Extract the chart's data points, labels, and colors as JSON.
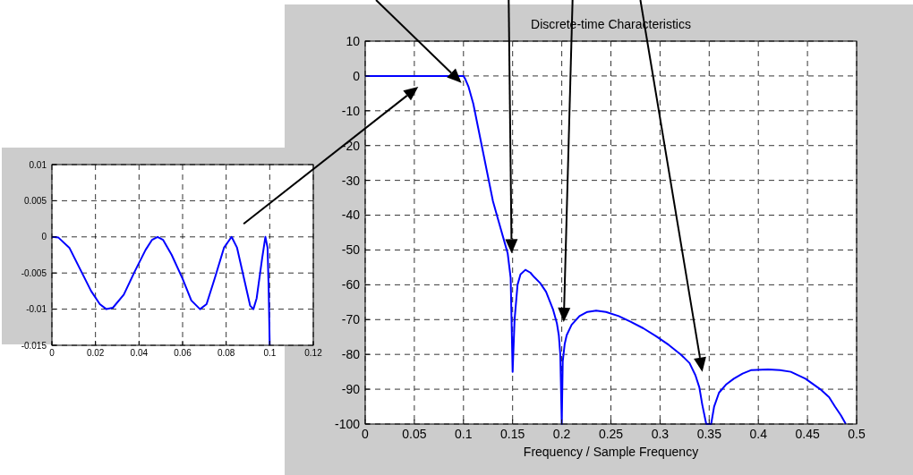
{
  "chart_data": [
    {
      "type": "line",
      "title": "Discrete-time Characteristics",
      "xlabel": "Frequency / Sample Frequency",
      "x": [
        0,
        0.05,
        0.1,
        0.102,
        0.105,
        0.11,
        0.115,
        0.12,
        0.125,
        0.13,
        0.135,
        0.14,
        0.145,
        0.148,
        0.15,
        0.152,
        0.155,
        0.158,
        0.163,
        0.168,
        0.172,
        0.178,
        0.184,
        0.191,
        0.195,
        0.197,
        0.1985,
        0.2,
        0.201,
        0.203,
        0.205,
        0.21,
        0.218,
        0.226,
        0.235,
        0.245,
        0.258,
        0.27,
        0.283,
        0.296,
        0.309,
        0.321,
        0.33,
        0.336,
        0.34,
        0.343,
        0.347,
        0.352,
        0.355,
        0.36,
        0.367,
        0.375,
        0.384,
        0.393,
        0.41,
        0.422,
        0.433,
        0.448,
        0.463,
        0.472,
        0.478,
        0.484,
        0.489
      ],
      "series": [
        {
          "color": "#0000ff",
          "values": [
            0,
            0,
            0,
            -1,
            -3,
            -8,
            -15,
            -22,
            -29,
            -36,
            -41,
            -46,
            -51,
            -58,
            -85,
            -70,
            -60,
            -57,
            -55.7,
            -56.5,
            -57.8,
            -59.5,
            -62,
            -67,
            -71,
            -74.5,
            -80,
            -100,
            -82,
            -77,
            -74.5,
            -71.5,
            -69,
            -67.8,
            -67.4,
            -67.8,
            -69,
            -70.6,
            -72.5,
            -74.8,
            -77.3,
            -80,
            -82.5,
            -86,
            -89.5,
            -94.5,
            -100,
            -100,
            -95,
            -91,
            -88.7,
            -87,
            -85.5,
            -84.5,
            -84.3,
            -84.5,
            -85,
            -87,
            -90,
            -92.3,
            -95,
            -97.5,
            -100
          ]
        }
      ],
      "xlim": [
        0,
        0.5
      ],
      "ylim": [
        -100,
        10
      ],
      "xticks": [
        0,
        0.05,
        0.1,
        0.15,
        0.2,
        0.25,
        0.3,
        0.35,
        0.4,
        0.45,
        0.5
      ],
      "yticks": [
        -100,
        -90,
        -80,
        -70,
        -60,
        -50,
        -40,
        -30,
        -20,
        -10,
        0,
        10
      ],
      "grid": true
    },
    {
      "type": "line",
      "x": [
        0,
        0.003,
        0.008,
        0.013,
        0.018,
        0.022,
        0.025,
        0.028,
        0.033,
        0.038,
        0.043,
        0.046,
        0.0485,
        0.051,
        0.055,
        0.06,
        0.064,
        0.068,
        0.071,
        0.075,
        0.079,
        0.0825,
        0.085,
        0.088,
        0.091,
        0.0925,
        0.094,
        0.0965,
        0.098,
        0.099,
        0.0995,
        0.1
      ],
      "series": [
        {
          "color": "#0000ff",
          "values": [
            0,
            -0.0001,
            -0.0015,
            -0.0045,
            -0.0075,
            -0.0093,
            -0.01,
            -0.0098,
            -0.008,
            -0.0048,
            -0.0018,
            -0.0004,
            0,
            -0.0004,
            -0.0025,
            -0.0058,
            -0.0088,
            -0.01,
            -0.0093,
            -0.0055,
            -0.0015,
            0,
            -0.0015,
            -0.0055,
            -0.0095,
            -0.01,
            -0.0085,
            -0.003,
            0,
            -0.0015,
            -0.007,
            -0.015
          ]
        }
      ],
      "xlim": [
        0,
        0.12
      ],
      "ylim": [
        -0.015,
        0.01
      ],
      "xticks": [
        0,
        0.02,
        0.04,
        0.06,
        0.08,
        0.1,
        0.12
      ],
      "yticks": [
        -0.015,
        -0.01,
        -0.005,
        0,
        0.005,
        0.01
      ],
      "grid": true
    }
  ]
}
